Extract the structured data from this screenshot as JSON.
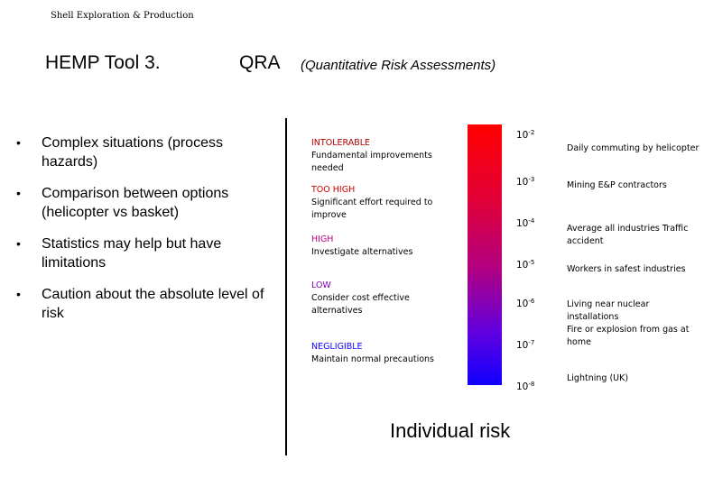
{
  "header": {
    "company": "Shell Exploration & Production",
    "title": "HEMP Tool 3.",
    "qra": "QRA",
    "qra_subtitle": "(Quantitative Risk Assessments)"
  },
  "bullets": [
    "Complex situations (process hazards)",
    "Comparison between options (helicopter vs basket)",
    "Statistics may help but have limitations",
    "Caution about the absolute level of risk"
  ],
  "bullet_symbol": "•",
  "risk_zones": [
    {
      "name": "INTOLERABLE",
      "desc": "Fundamental improvements needed",
      "color": "#b00000"
    },
    {
      "name": "TOO HIGH",
      "desc": "Significant effort required to improve",
      "color": "#d00000"
    },
    {
      "name": "HIGH",
      "desc": "Investigate alternatives",
      "color": "#c0008a"
    },
    {
      "name": "LOW",
      "desc": "Consider cost effective alternatives",
      "color": "#8000b0"
    },
    {
      "name": "NEGLIGIBLE",
      "desc": "Maintain normal precautions",
      "color": "#1000ff"
    }
  ],
  "scale": [
    {
      "base": "10",
      "exp": "-2"
    },
    {
      "base": "10",
      "exp": "-3"
    },
    {
      "base": "10",
      "exp": "-4"
    },
    {
      "base": "10",
      "exp": "-5"
    },
    {
      "base": "10",
      "exp": "-6"
    },
    {
      "base": "10",
      "exp": "-7"
    },
    {
      "base": "10",
      "exp": "-8"
    }
  ],
  "examples": [
    "Daily commuting by helicopter",
    "Mining E&P contractors",
    "Average all industries Traffic accident",
    "Workers in safest industries",
    "Living near nuclear installations",
    "Fire or explosion from gas at home",
    "Lightning (UK)"
  ],
  "risk_bar": {
    "top_color": "#ff0000",
    "bottom_color": "#1000ff"
  },
  "axis_label": "Individual risk"
}
